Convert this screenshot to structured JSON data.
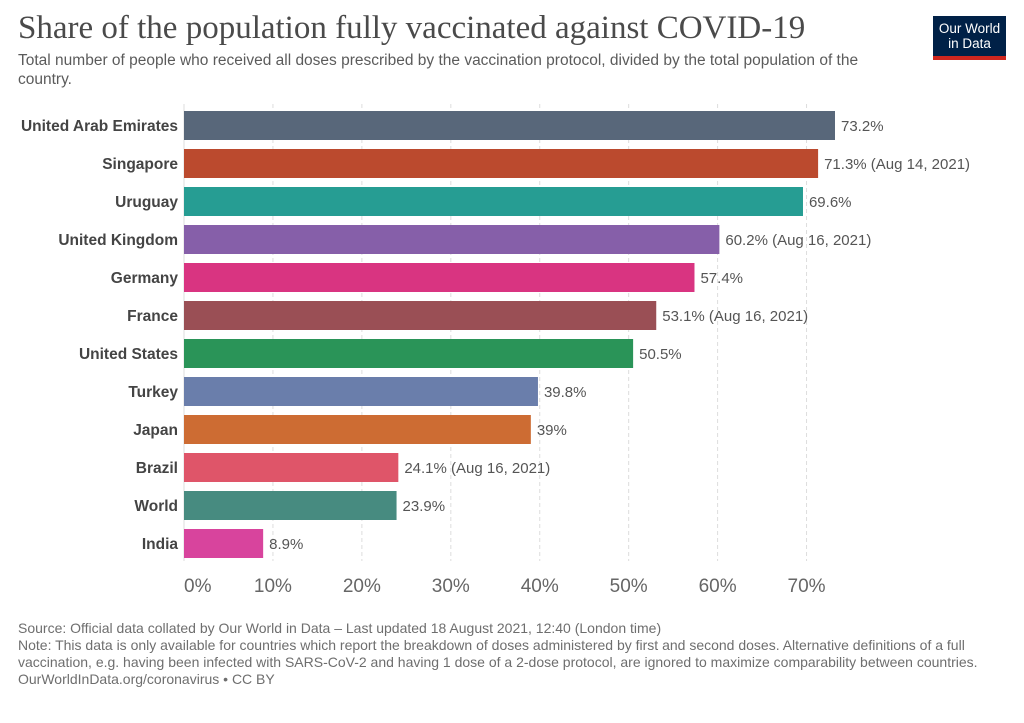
{
  "header": {
    "title": "Share of the population fully vaccinated against COVID-19",
    "subtitle": "Total number of people who received all doses prescribed by the vaccination protocol, divided by the total population of the country."
  },
  "logo": {
    "line1": "Our World",
    "line2": "in Data",
    "bg_color": "#002147",
    "accent_color": "#ce261e"
  },
  "chart_data": {
    "type": "bar",
    "orientation": "horizontal",
    "title": "Share of the population fully vaccinated against COVID-19",
    "xlabel": "",
    "ylabel": "",
    "xlim": [
      0,
      73.2
    ],
    "grid": true,
    "x_ticks": [
      0,
      10,
      20,
      30,
      40,
      50,
      60,
      70
    ],
    "x_tick_labels": [
      "0%",
      "10%",
      "20%",
      "30%",
      "40%",
      "50%",
      "60%",
      "70%"
    ],
    "categories": [
      "United Arab Emirates",
      "Singapore",
      "Uruguay",
      "United Kingdom",
      "Germany",
      "France",
      "United States",
      "Turkey",
      "Japan",
      "Brazil",
      "World",
      "India"
    ],
    "values": [
      73.2,
      71.3,
      69.6,
      60.2,
      57.4,
      53.1,
      50.5,
      39.8,
      39,
      24.1,
      23.9,
      8.9
    ],
    "value_labels": [
      "73.2%",
      "71.3% (Aug 14, 2021)",
      "69.6%",
      "60.2% (Aug 16, 2021)",
      "57.4%",
      "53.1% (Aug 16, 2021)",
      "50.5%",
      "39.8%",
      "39%",
      "24.1% (Aug 16, 2021)",
      "23.9%",
      "8.9%"
    ],
    "colors": [
      "#58677a",
      "#bb4a2e",
      "#269d93",
      "#865fa9",
      "#d93481",
      "#9a4f55",
      "#2a9458",
      "#6a7eab",
      "#cd6c33",
      "#df5569",
      "#478b80",
      "#d8449d"
    ]
  },
  "footer": {
    "source": "Source: Official data collated by Our World in Data – Last updated 18 August 2021, 12:40 (London time)",
    "note": "Note: This data is only available for countries which report the breakdown of doses administered by first and second doses. Alternative definitions of a full vaccination, e.g. having been infected with SARS-CoV-2 and having 1 dose of a 2-dose protocol, are ignored to maximize comparability between countries.",
    "url": "OurWorldInData.org/coronavirus • CC BY"
  }
}
